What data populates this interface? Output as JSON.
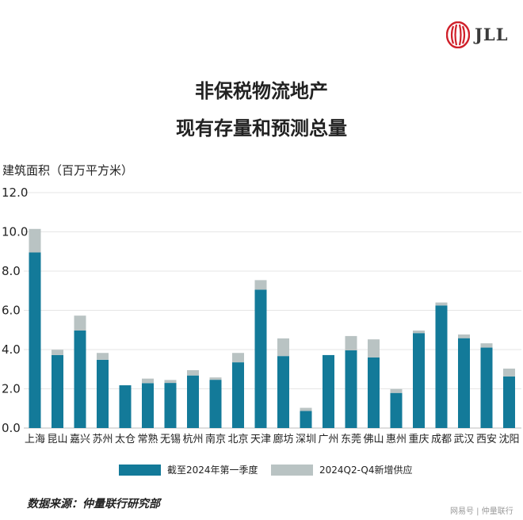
{
  "brand": {
    "logo_text": "JLL",
    "logo_color": "#d0202a"
  },
  "title_line1": "非保税物流地产",
  "title_line2": "现有存量和预测总量",
  "legend": [
    {
      "label": "截至2024年第一季度",
      "color": "#137a99"
    },
    {
      "label": "2024Q2-Q4新增供应",
      "color": "#b9c3c3"
    }
  ],
  "source": "数据来源：仲量联行研究部",
  "watermark": "网易号 | 仲量联行",
  "chart_data": {
    "type": "bar",
    "stacked": true,
    "ylabel": "建筑面积（百万平方米）",
    "ylim": [
      0,
      12
    ],
    "yticks": [
      "0.0",
      "2.0",
      "4.0",
      "6.0",
      "8.0",
      "10.0",
      "12.0"
    ],
    "grid": true,
    "categories": [
      "上海",
      "昆山",
      "嘉兴",
      "苏州",
      "太仓",
      "常熟",
      "无锡",
      "杭州",
      "南京",
      "北京",
      "天津",
      "廊坊",
      "深圳",
      "广州",
      "东莞",
      "佛山",
      "惠州",
      "重庆",
      "成都",
      "武汉",
      "西安",
      "沈阳"
    ],
    "series": [
      {
        "name": "截至2024年第一季度",
        "color": "#137a99",
        "values": [
          8.95,
          3.72,
          4.97,
          3.48,
          2.18,
          2.29,
          2.3,
          2.68,
          2.46,
          3.35,
          7.05,
          3.67,
          0.87,
          3.72,
          3.96,
          3.6,
          1.79,
          4.84,
          6.25,
          4.58,
          4.1,
          2.63
        ]
      },
      {
        "name": "2024Q2-Q4新增供应",
        "color": "#b9c3c3",
        "values": [
          1.2,
          0.27,
          0.76,
          0.35,
          0.0,
          0.23,
          0.15,
          0.27,
          0.12,
          0.48,
          0.49,
          0.9,
          0.16,
          0.0,
          0.73,
          0.92,
          0.2,
          0.13,
          0.15,
          0.19,
          0.22,
          0.4
        ]
      }
    ]
  }
}
